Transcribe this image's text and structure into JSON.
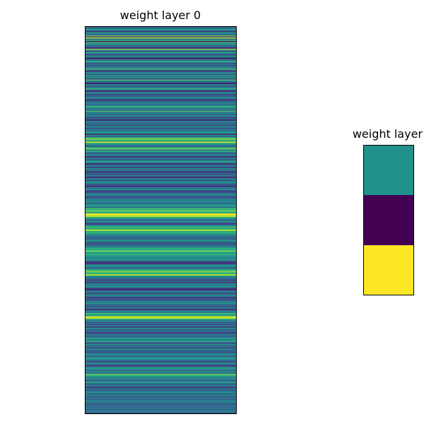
{
  "chart_data": [
    {
      "type": "heatmap",
      "title": "weight layer 0",
      "columns": 1,
      "colormap": "viridis",
      "grid": false,
      "axes_visible": false,
      "values": [
        0.4,
        0.35,
        0.6,
        0.45,
        0.2,
        0.55,
        0.5,
        0.3,
        0.75,
        0.25,
        0.85,
        0.4,
        0.65,
        0.15,
        0.7,
        0.45,
        0.55,
        0.35,
        0.4,
        0.2,
        0.8,
        0.45,
        0.3,
        0.6,
        0.5,
        0.25,
        0.45,
        0.55,
        0.1,
        0.4,
        0.35,
        0.65,
        0.5,
        0.3,
        0.45,
        0.25,
        0.55,
        0.4,
        0.7,
        0.35,
        0.2,
        0.5,
        0.45,
        0.3,
        0.6,
        0.4,
        0.55,
        0.25,
        0.7,
        0.45,
        0.35,
        0.15,
        0.5,
        0.4,
        0.3,
        0.55,
        0.65,
        0.35,
        0.2,
        0.45,
        0.5,
        0.25,
        0.4,
        0.35,
        0.55,
        0.3,
        0.2,
        0.45,
        0.35,
        0.5,
        0.4,
        0.45,
        0.65,
        0.4,
        0.55,
        0.3,
        0.7,
        0.45,
        0.5,
        0.35,
        0.55,
        0.4,
        0.25,
        0.45,
        0.15,
        0.4,
        0.5,
        0.35,
        0.45,
        0.25,
        0.55,
        0.4,
        0.3,
        0.5,
        0.35,
        0.6,
        0.45,
        0.2,
        0.55,
        0.35,
        0.6,
        0.8,
        0.7,
        0.55,
        0.9,
        0.65,
        0.5,
        0.45,
        0.35,
        0.6,
        0.75,
        0.4,
        0.65,
        0.5,
        0.3,
        0.45,
        0.55,
        0.2,
        0.4,
        0.45,
        0.3,
        0.55,
        0.6,
        0.35,
        0.2,
        0.45,
        0.4,
        0.25,
        0.55,
        0.35,
        0.5,
        0.15,
        0.4,
        0.3,
        0.45,
        0.35,
        0.2,
        0.5,
        0.4,
        0.3,
        0.55,
        0.45,
        0.35,
        0.3,
        0.2,
        0.45,
        0.4,
        0.55,
        0.3,
        0.25,
        0.4,
        0.5,
        0.45,
        0.35,
        0.3,
        0.4,
        0.5,
        0.45,
        0.55,
        0.35,
        0.45,
        0.55,
        0.6,
        0.4,
        0.7,
        0.65,
        0.75,
        0.7,
        0.55,
        0.95,
        0.9,
        0.85,
        0.65,
        0.5,
        0.45,
        0.4,
        0.55,
        0.35,
        0.25,
        0.45,
        0.6,
        0.7,
        0.55,
        0.75,
        0.85,
        0.6,
        0.65,
        0.5,
        0.55,
        0.35,
        0.45,
        0.3,
        0.4,
        0.55,
        0.45,
        0.25,
        0.4,
        0.3,
        0.5,
        0.45,
        0.65,
        0.6,
        0.75,
        0.7,
        0.55,
        0.6,
        0.65,
        0.5,
        0.55,
        0.45,
        0.6,
        0.45,
        0.3,
        0.2,
        0.25,
        0.45,
        0.55,
        0.4,
        0.35,
        0.6,
        0.65,
        0.8,
        0.7,
        0.6,
        0.85,
        0.55,
        0.45,
        0.4,
        0.35,
        0.25,
        0.45,
        0.2,
        0.5,
        0.4,
        0.55,
        0.45,
        0.35,
        0.15,
        0.3,
        0.45,
        0.4,
        0.25,
        0.55,
        0.45,
        0.35,
        0.2,
        0.4,
        0.3,
        0.5,
        0.45,
        0.55,
        0.35,
        0.4,
        0.3,
        0.45,
        0.2,
        0.35,
        0.5,
        0.45,
        0.7,
        0.55,
        0.6,
        0.9,
        0.85,
        0.65,
        0.45,
        0.5,
        0.35,
        0.4,
        0.3,
        0.45,
        0.2,
        0.55,
        0.4,
        0.35,
        0.45,
        0.25,
        0.3,
        0.45,
        0.4,
        0.35,
        0.6,
        0.5,
        0.45,
        0.65,
        0.4,
        0.3,
        0.55,
        0.35,
        0.45,
        0.25,
        0.5,
        0.4,
        0.35,
        0.3,
        0.45,
        0.55,
        0.4,
        0.35,
        0.6,
        0.5,
        0.45,
        0.3,
        0.35,
        0.55,
        0.4,
        0.25,
        0.3,
        0.6,
        0.5,
        0.4,
        0.45,
        0.55,
        0.35,
        0.75,
        0.65,
        0.5,
        0.45,
        0.55,
        0.35,
        0.4,
        0.6,
        0.45,
        0.35,
        0.5,
        0.3,
        0.25,
        0.45,
        0.35,
        0.4,
        0.5,
        0.45,
        0.35,
        0.55,
        0.3,
        0.45,
        0.4,
        0.35,
        0.5,
        0.45,
        0.4,
        0.3,
        0.45,
        0.35,
        0.4,
        0.45,
        0.35,
        0.5,
        0.4,
        0.3
      ]
    },
    {
      "type": "heatmap",
      "title": "weight layer",
      "columns": 1,
      "colormap": "viridis",
      "grid": false,
      "axes_visible": false,
      "values": [
        0.5,
        0.0,
        1.0
      ]
    }
  ]
}
